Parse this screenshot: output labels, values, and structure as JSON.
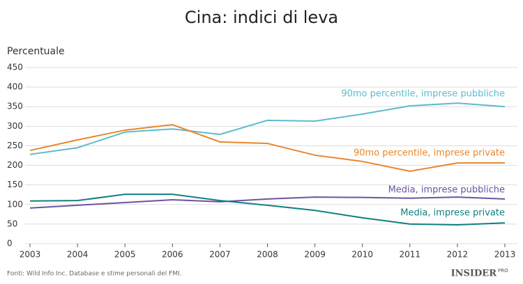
{
  "chart_data": {
    "type": "line",
    "title": "Cina: indici di leva",
    "y_label": "Percentuale",
    "x": [
      2003,
      2004,
      2005,
      2006,
      2007,
      2008,
      2009,
      2010,
      2011,
      2012,
      2013
    ],
    "xlim": [
      2003,
      2013
    ],
    "xticks": [
      2003,
      2004,
      2005,
      2006,
      2007,
      2008,
      2009,
      2010,
      2011,
      2012,
      2013
    ],
    "ylim": [
      0,
      450
    ],
    "yticks": [
      0,
      50,
      100,
      150,
      200,
      250,
      300,
      350,
      400,
      450
    ],
    "grid": true,
    "series": [
      {
        "name": "90mo percentile, imprese pubbliche",
        "color": "#5bbccc",
        "values": [
          228,
          245,
          285,
          293,
          279,
          315,
          313,
          331,
          352,
          359,
          350
        ]
      },
      {
        "name": "90mo percentile, imprese private",
        "color": "#e8862a",
        "values": [
          238,
          265,
          290,
          304,
          260,
          256,
          226,
          210,
          185,
          206,
          206
        ]
      },
      {
        "name": "Media, imprese pubbliche",
        "color": "#6b53a0",
        "values": [
          91,
          98,
          105,
          112,
          107,
          114,
          119,
          118,
          116,
          119,
          114
        ]
      },
      {
        "name": "Media, imprese private",
        "color": "#127f7f",
        "values": [
          109,
          110,
          126,
          126,
          110,
          98,
          85,
          66,
          50,
          48,
          53
        ]
      }
    ],
    "source": "Fonti: Wild Info Inc. Database e stime personali del FMI.",
    "logo": "INSIDER",
    "logo_sup": "PRO"
  }
}
